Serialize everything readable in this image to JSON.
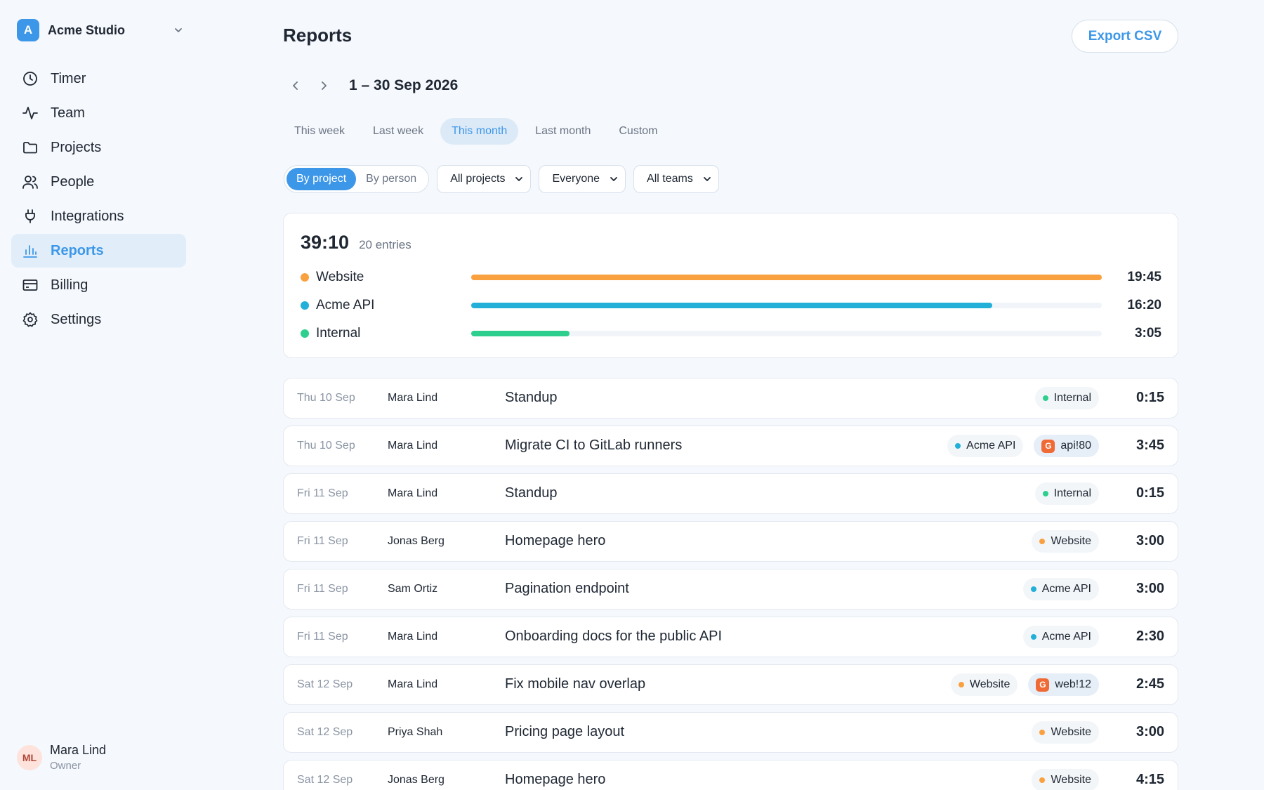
{
  "org": {
    "initial": "A",
    "name": "Acme Studio"
  },
  "nav": [
    {
      "label": "Timer",
      "icon": "clock-icon"
    },
    {
      "label": "Team",
      "icon": "activity-icon"
    },
    {
      "label": "Projects",
      "icon": "folder-icon"
    },
    {
      "label": "People",
      "icon": "users-icon"
    },
    {
      "label": "Integrations",
      "icon": "plug-icon"
    },
    {
      "label": "Reports",
      "icon": "bar-chart-icon",
      "active": true
    },
    {
      "label": "Billing",
      "icon": "credit-card-icon"
    },
    {
      "label": "Settings",
      "icon": "gear-icon"
    }
  ],
  "user": {
    "initials": "ML",
    "name": "Mara Lind",
    "role": "Owner"
  },
  "page": {
    "title": "Reports",
    "export_label": "Export CSV",
    "date_range": "1 – 30 Sep 2026"
  },
  "presets": [
    {
      "label": "This week"
    },
    {
      "label": "Last week"
    },
    {
      "label": "This month",
      "active": true
    },
    {
      "label": "Last month"
    },
    {
      "label": "Custom"
    }
  ],
  "group_by": {
    "options": [
      "By project",
      "By person"
    ],
    "selected": "By project"
  },
  "filters": {
    "projects": "All projects",
    "people": "Everyone",
    "teams": "All teams"
  },
  "summary": {
    "total": "39:10",
    "entries": "20 entries",
    "projects": [
      {
        "name": "Website",
        "time": "19:45",
        "color": "#f9a03f",
        "fraction": 1.0
      },
      {
        "name": "Acme API",
        "time": "16:20",
        "color": "#22b0d8",
        "fraction": 0.826
      },
      {
        "name": "Internal",
        "time": "3:05",
        "color": "#2ecf8e",
        "fraction": 0.156
      }
    ]
  },
  "project_colors": {
    "Website": "#f9a03f",
    "Acme API": "#22b0d8",
    "Internal": "#2ecf8e"
  },
  "entries": [
    {
      "date": "Thu 10 Sep",
      "person": "Mara Lind",
      "desc": "Standup",
      "project": "Internal",
      "duration": "0:15"
    },
    {
      "date": "Thu 10 Sep",
      "person": "Mara Lind",
      "desc": "Migrate CI to GitLab runners",
      "project": "Acme API",
      "ref": "api!80",
      "duration": "3:45"
    },
    {
      "date": "Fri 11 Sep",
      "person": "Mara Lind",
      "desc": "Standup",
      "project": "Internal",
      "duration": "0:15"
    },
    {
      "date": "Fri 11 Sep",
      "person": "Jonas Berg",
      "desc": "Homepage hero",
      "project": "Website",
      "duration": "3:00"
    },
    {
      "date": "Fri 11 Sep",
      "person": "Sam Ortiz",
      "desc": "Pagination endpoint",
      "project": "Acme API",
      "duration": "3:00"
    },
    {
      "date": "Fri 11 Sep",
      "person": "Mara Lind",
      "desc": "Onboarding docs for the public API",
      "project": "Acme API",
      "duration": "2:30"
    },
    {
      "date": "Sat 12 Sep",
      "person": "Mara Lind",
      "desc": "Fix mobile nav overlap",
      "project": "Website",
      "ref": "web!12",
      "duration": "2:45"
    },
    {
      "date": "Sat 12 Sep",
      "person": "Priya Shah",
      "desc": "Pricing page layout",
      "project": "Website",
      "duration": "3:00"
    },
    {
      "date": "Sat 12 Sep",
      "person": "Jonas Berg",
      "desc": "Homepage hero",
      "project": "Website",
      "duration": "4:15"
    }
  ],
  "ref_badge": "G"
}
